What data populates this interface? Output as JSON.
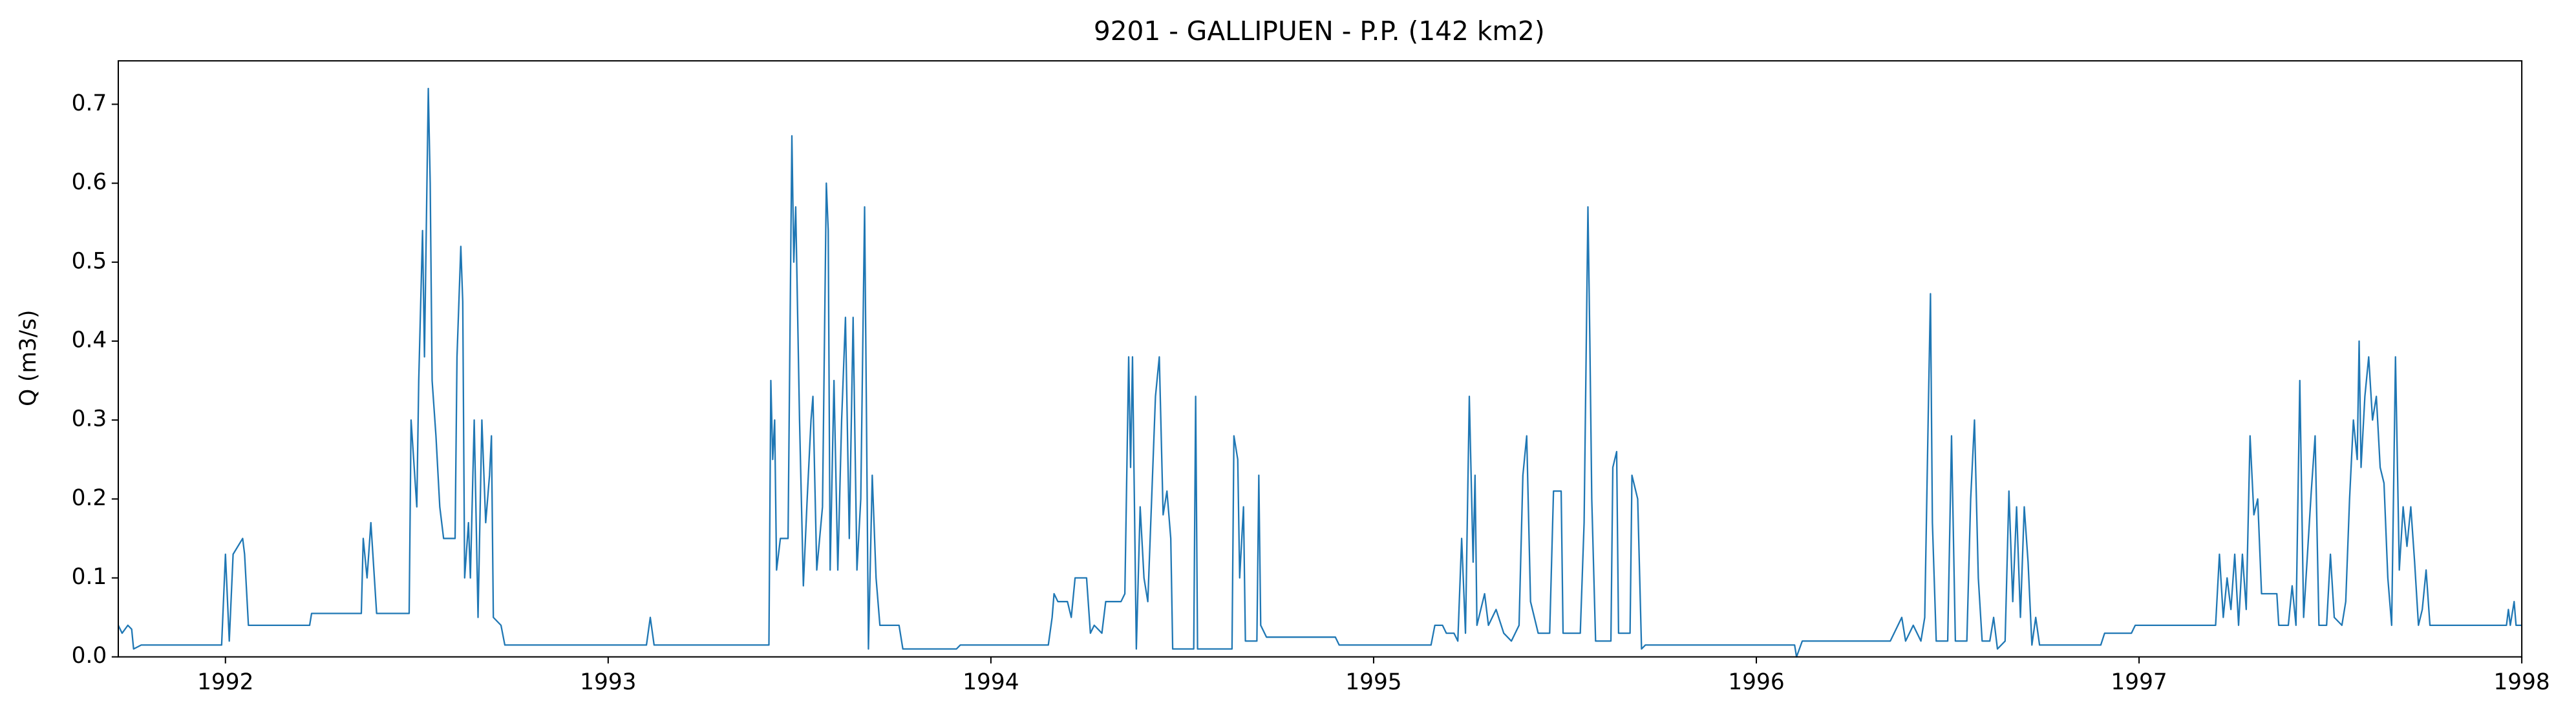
{
  "chart_data": {
    "type": "line",
    "title": "9201 - GALLIPUEN - P.P. (142 km2)",
    "y_label": "Q (m3/s)",
    "x": [
      1991.72,
      1991.73,
      1991.745,
      1991.755,
      1991.76,
      1991.78,
      1991.99,
      1992.0,
      1992.01,
      1992.02,
      1992.045,
      1992.05,
      1992.06,
      1992.22,
      1992.225,
      1992.355,
      1992.36,
      1992.37,
      1992.38,
      1992.395,
      1992.48,
      1992.485,
      1992.5,
      1992.505,
      1992.515,
      1992.52,
      1992.53,
      1992.535,
      1992.54,
      1992.55,
      1992.56,
      1992.57,
      1992.6,
      1992.605,
      1992.615,
      1992.62,
      1992.625,
      1992.635,
      1992.64,
      1992.65,
      1992.66,
      1992.67,
      1992.68,
      1992.69,
      1992.695,
      1992.7,
      1992.72,
      1992.73,
      1993.1,
      1993.11,
      1993.12,
      1993.42,
      1993.425,
      1993.43,
      1993.435,
      1993.44,
      1993.45,
      1993.47,
      1993.48,
      1993.485,
      1993.49,
      1993.5,
      1993.51,
      1993.52,
      1993.53,
      1993.535,
      1993.545,
      1993.56,
      1993.57,
      1993.575,
      1993.58,
      1993.59,
      1993.6,
      1993.61,
      1993.62,
      1993.63,
      1993.64,
      1993.65,
      1993.66,
      1993.67,
      1993.675,
      1993.68,
      1993.69,
      1993.7,
      1993.71,
      1993.76,
      1993.77,
      1993.91,
      1993.92,
      1994.15,
      1994.16,
      1994.165,
      1994.175,
      1994.2,
      1994.21,
      1994.22,
      1994.25,
      1994.26,
      1994.27,
      1994.29,
      1994.3,
      1994.34,
      1994.35,
      1994.36,
      1994.365,
      1994.37,
      1994.38,
      1994.39,
      1994.4,
      1994.41,
      1994.43,
      1994.44,
      1994.45,
      1994.46,
      1994.47,
      1994.475,
      1994.53,
      1994.535,
      1994.54,
      1994.63,
      1994.635,
      1994.645,
      1994.65,
      1994.66,
      1994.665,
      1994.695,
      1994.7,
      1994.705,
      1994.72,
      1994.9,
      1994.91,
      1995.15,
      1995.16,
      1995.18,
      1995.19,
      1995.21,
      1995.22,
      1995.23,
      1995.24,
      1995.25,
      1995.26,
      1995.265,
      1995.27,
      1995.29,
      1995.3,
      1995.32,
      1995.34,
      1995.36,
      1995.38,
      1995.39,
      1995.4,
      1995.41,
      1995.43,
      1995.46,
      1995.47,
      1995.49,
      1995.495,
      1995.54,
      1995.55,
      1995.56,
      1995.565,
      1995.57,
      1995.58,
      1995.62,
      1995.625,
      1995.635,
      1995.64,
      1995.67,
      1995.675,
      1995.69,
      1995.7,
      1995.71,
      1996.1,
      1996.105,
      1996.12,
      1996.35,
      1996.36,
      1996.38,
      1996.39,
      1996.41,
      1996.43,
      1996.44,
      1996.45,
      1996.455,
      1996.46,
      1996.47,
      1996.5,
      1996.51,
      1996.52,
      1996.55,
      1996.56,
      1996.57,
      1996.58,
      1996.59,
      1996.61,
      1996.62,
      1996.63,
      1996.65,
      1996.66,
      1996.67,
      1996.68,
      1996.69,
      1996.7,
      1996.71,
      1996.72,
      1996.73,
      1996.74,
      1996.9,
      1996.91,
      1996.98,
      1996.99,
      1997.2,
      1997.21,
      1997.22,
      1997.23,
      1997.24,
      1997.25,
      1997.26,
      1997.27,
      1997.28,
      1997.29,
      1997.3,
      1997.31,
      1997.32,
      1997.36,
      1997.365,
      1997.39,
      1997.4,
      1997.41,
      1997.42,
      1997.43,
      1997.45,
      1997.46,
      1997.47,
      1997.49,
      1997.5,
      1997.51,
      1997.53,
      1997.54,
      1997.55,
      1997.56,
      1997.57,
      1997.575,
      1997.58,
      1997.59,
      1997.6,
      1997.61,
      1997.62,
      1997.63,
      1997.64,
      1997.65,
      1997.66,
      1997.67,
      1997.68,
      1997.69,
      1997.7,
      1997.71,
      1997.72,
      1997.73,
      1997.74,
      1997.75,
      1997.76,
      1997.96,
      1997.965,
      1997.97,
      1997.98,
      1997.985,
      1998.0
    ],
    "series": [
      {
        "color": "#1f77b4",
        "values": [
          0.04,
          0.03,
          0.04,
          0.035,
          0.01,
          0.015,
          0.015,
          0.13,
          0.02,
          0.13,
          0.15,
          0.13,
          0.04,
          0.04,
          0.055,
          0.055,
          0.15,
          0.1,
          0.17,
          0.055,
          0.055,
          0.3,
          0.19,
          0.35,
          0.54,
          0.38,
          0.72,
          0.6,
          0.35,
          0.28,
          0.19,
          0.15,
          0.15,
          0.38,
          0.52,
          0.45,
          0.1,
          0.17,
          0.1,
          0.3,
          0.05,
          0.3,
          0.17,
          0.23,
          0.28,
          0.05,
          0.04,
          0.015,
          0.015,
          0.05,
          0.015,
          0.015,
          0.35,
          0.25,
          0.3,
          0.11,
          0.15,
          0.15,
          0.66,
          0.5,
          0.57,
          0.3,
          0.09,
          0.2,
          0.3,
          0.33,
          0.11,
          0.19,
          0.6,
          0.54,
          0.11,
          0.35,
          0.11,
          0.3,
          0.43,
          0.15,
          0.43,
          0.11,
          0.2,
          0.57,
          0.3,
          0.01,
          0.23,
          0.1,
          0.04,
          0.04,
          0.01,
          0.01,
          0.015,
          0.015,
          0.05,
          0.08,
          0.07,
          0.07,
          0.05,
          0.1,
          0.1,
          0.03,
          0.04,
          0.03,
          0.07,
          0.07,
          0.08,
          0.38,
          0.24,
          0.38,
          0.01,
          0.19,
          0.1,
          0.07,
          0.33,
          0.38,
          0.18,
          0.21,
          0.15,
          0.01,
          0.01,
          0.33,
          0.01,
          0.01,
          0.28,
          0.25,
          0.1,
          0.19,
          0.02,
          0.02,
          0.23,
          0.04,
          0.025,
          0.025,
          0.015,
          0.015,
          0.04,
          0.04,
          0.03,
          0.03,
          0.02,
          0.15,
          0.03,
          0.33,
          0.12,
          0.23,
          0.04,
          0.08,
          0.04,
          0.06,
          0.03,
          0.02,
          0.04,
          0.23,
          0.28,
          0.07,
          0.03,
          0.03,
          0.21,
          0.21,
          0.03,
          0.03,
          0.17,
          0.57,
          0.4,
          0.2,
          0.02,
          0.02,
          0.24,
          0.26,
          0.03,
          0.03,
          0.23,
          0.2,
          0.01,
          0.015,
          0.015,
          0.0,
          0.02,
          0.02,
          0.03,
          0.05,
          0.02,
          0.04,
          0.02,
          0.05,
          0.33,
          0.46,
          0.17,
          0.02,
          0.02,
          0.28,
          0.02,
          0.02,
          0.2,
          0.3,
          0.1,
          0.02,
          0.02,
          0.05,
          0.01,
          0.02,
          0.21,
          0.07,
          0.19,
          0.05,
          0.19,
          0.12,
          0.015,
          0.05,
          0.015,
          0.015,
          0.03,
          0.03,
          0.04,
          0.04,
          0.13,
          0.05,
          0.1,
          0.06,
          0.13,
          0.04,
          0.13,
          0.06,
          0.28,
          0.18,
          0.2,
          0.08,
          0.08,
          0.04,
          0.04,
          0.09,
          0.04,
          0.35,
          0.05,
          0.21,
          0.28,
          0.04,
          0.04,
          0.13,
          0.05,
          0.04,
          0.07,
          0.2,
          0.3,
          0.25,
          0.4,
          0.24,
          0.33,
          0.38,
          0.3,
          0.33,
          0.24,
          0.22,
          0.1,
          0.04,
          0.38,
          0.11,
          0.19,
          0.14,
          0.19,
          0.12,
          0.04,
          0.06,
          0.11,
          0.04,
          0.04,
          0.06,
          0.04,
          0.07,
          0.04,
          0.04
        ]
      }
    ],
    "xlim": [
      1991.72,
      1998
    ],
    "xticks": [
      1992,
      1993,
      1994,
      1995,
      1996,
      1997,
      1998
    ],
    "ylim": [
      0,
      0.755
    ],
    "yticks": [
      {
        "value": 0,
        "label": "0.0"
      },
      0.1,
      0.2,
      0.3,
      0.4,
      0.5,
      0.6,
      0.7
    ]
  }
}
